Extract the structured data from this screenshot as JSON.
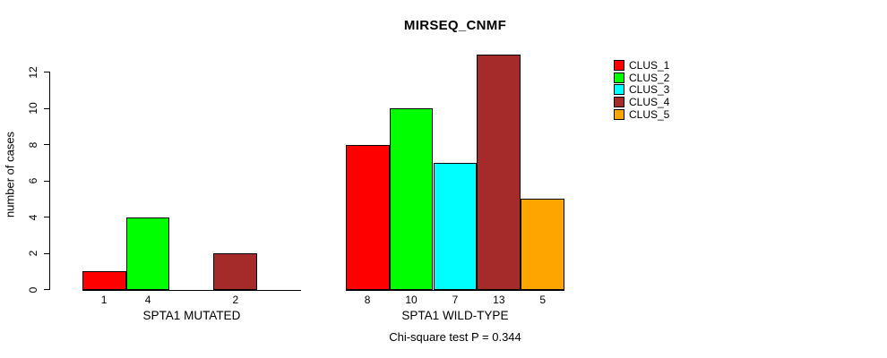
{
  "chart_data": {
    "type": "bar",
    "title": "MIRSEQ_CNMF",
    "ylabel": "number of cases",
    "ylim": [
      0,
      12
    ],
    "yticks": [
      0,
      2,
      4,
      6,
      8,
      10,
      12
    ],
    "grid": false,
    "legend_position": "right",
    "clusters": [
      {
        "label": "CLUS_1",
        "color": "#FF0000"
      },
      {
        "label": "CLUS_2",
        "color": "#00FF00"
      },
      {
        "label": "CLUS_3",
        "color": "#00FFFF"
      },
      {
        "label": "CLUS_4",
        "color": "#A52A2A"
      },
      {
        "label": "CLUS_5",
        "color": "#FFA500"
      }
    ],
    "groups": [
      {
        "label": "SPTA1 MUTATED",
        "values": [
          1,
          4,
          0,
          2,
          0
        ]
      },
      {
        "label": "SPTA1 WILD-TYPE",
        "values": [
          8,
          10,
          7,
          13,
          5
        ]
      }
    ],
    "footnote": "Chi-square test P = 0.344"
  }
}
